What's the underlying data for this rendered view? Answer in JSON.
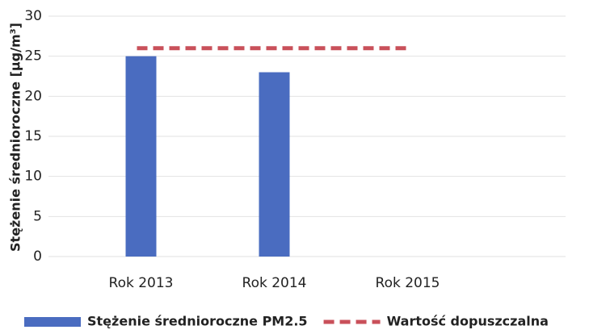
{
  "chart_data": {
    "type": "bar",
    "categories": [
      "Rok 2013",
      "Rok 2014",
      "Rok 2015"
    ],
    "y_axis_label": "Stężenie średnioroczne [µg/m³]",
    "series": [
      {
        "name": "Stężenie średnioroczne PM2.5",
        "type": "bar",
        "color": "#4a6cc0",
        "values": [
          25,
          23,
          null
        ]
      },
      {
        "name": "Wartość dopuszczalna",
        "type": "line",
        "color": "#c9505a",
        "values": [
          26,
          26,
          26
        ]
      }
    ],
    "ylim": [
      0,
      30
    ],
    "yticks": [
      0,
      5,
      10,
      15,
      20,
      25,
      30
    ],
    "grid": true,
    "legend": "bottom"
  }
}
